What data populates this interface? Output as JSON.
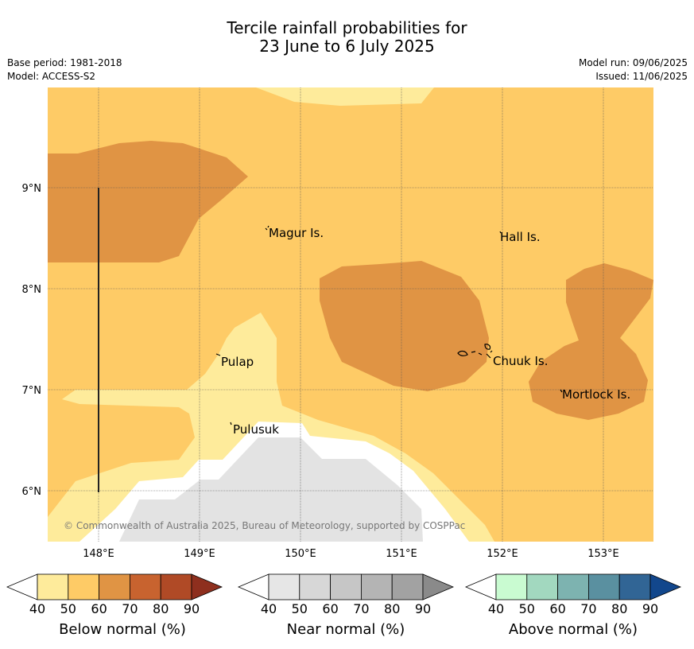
{
  "header": {
    "title_line1": "Tercile rainfall probabilities for",
    "title_line2": "23 June to 6 July 2025",
    "base_period": "Base period: 1981-2018",
    "model": "Model: ACCESS-S2",
    "model_run": "Model run: 09/06/2025",
    "issued": "Issued: 11/06/2025"
  },
  "map": {
    "lon_ticks": [
      "148°E",
      "149°E",
      "150°E",
      "151°E",
      "152°E",
      "153°E"
    ],
    "lat_ticks": [
      "9°N",
      "8°N",
      "7°N",
      "6°N"
    ],
    "places": [
      "Magur Is.",
      "Hall Is.",
      "Pulap",
      "Chuuk Is.",
      "Mortlock Is.",
      "Pulusuk"
    ],
    "copyright": "© Commonwealth of Australia 2025, Bureau of Meteorology, supported by COSPPac",
    "region_colors": {
      "background_50_60": "#fecb66",
      "below_60_70": "#e09444",
      "below_40_50": "#feeb9b",
      "near_normal": "#e3e3e3",
      "no_signal": "#ffffff"
    }
  },
  "colorbars": [
    {
      "name": "Below normal (%)",
      "ticks": [
        "40",
        "50",
        "60",
        "70",
        "80",
        "90"
      ],
      "colors": [
        "#ffffff",
        "#feeb9b",
        "#fecb66",
        "#e09444",
        "#c8632f",
        "#b04a26",
        "#8e2f1e"
      ]
    },
    {
      "name": "Near normal (%)",
      "ticks": [
        "40",
        "50",
        "60",
        "70",
        "80",
        "90"
      ],
      "colors": [
        "#ffffff",
        "#e6e6e6",
        "#d7d7d7",
        "#c6c6c6",
        "#b4b4b4",
        "#a2a2a2",
        "#8a8a8a"
      ]
    },
    {
      "name": "Above normal (%)",
      "ticks": [
        "40",
        "50",
        "60",
        "70",
        "80",
        "90"
      ],
      "colors": [
        "#ffffff",
        "#c9fbd1",
        "#a2d8bf",
        "#7db3b0",
        "#5a90a0",
        "#316595",
        "#12478c"
      ]
    }
  ]
}
